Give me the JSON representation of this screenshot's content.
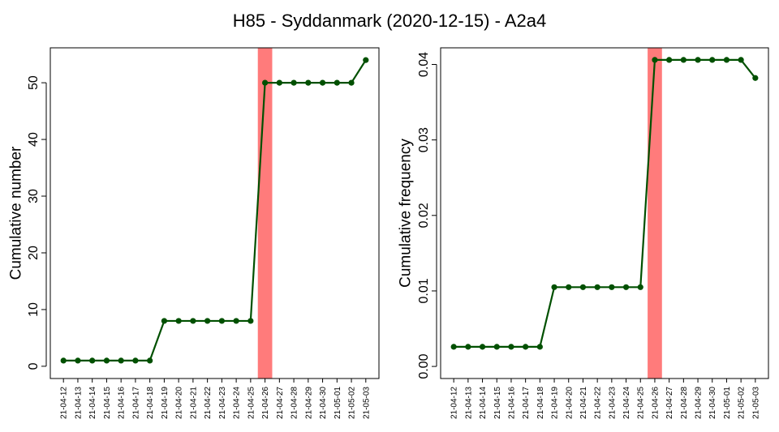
{
  "title": "H85 - Syddanmark (2020-12-15) - A2a4",
  "colors": {
    "line": "#005000",
    "highlight": "#ff7b7b",
    "axis": "#000000"
  },
  "chart_data": [
    {
      "type": "line",
      "ylabel": "Cumulative number",
      "categories": [
        "21-04-12",
        "21-04-13",
        "21-04-14",
        "21-04-15",
        "21-04-16",
        "21-04-17",
        "21-04-18",
        "21-04-19",
        "21-04-20",
        "21-04-21",
        "21-04-22",
        "21-04-23",
        "21-04-24",
        "21-04-25",
        "21-04-26",
        "21-04-27",
        "21-04-28",
        "21-04-29",
        "21-04-30",
        "21-05-01",
        "21-05-02",
        "21-05-03"
      ],
      "values": [
        1,
        1,
        1,
        1,
        1,
        1,
        1,
        8,
        8,
        8,
        8,
        8,
        8,
        8,
        50,
        50,
        50,
        50,
        50,
        50,
        50,
        54
      ],
      "yticks": [
        0,
        10,
        20,
        30,
        40,
        50
      ],
      "ytick_labels": [
        "0",
        "10",
        "20",
        "30",
        "40",
        "50"
      ],
      "ylim": [
        -2.16,
        56.16
      ],
      "highlight_category": "21-04-26",
      "grid": false
    },
    {
      "type": "line",
      "ylabel": "Cumulative frequency",
      "categories": [
        "21-04-12",
        "21-04-13",
        "21-04-14",
        "21-04-15",
        "21-04-16",
        "21-04-17",
        "21-04-18",
        "21-04-19",
        "21-04-20",
        "21-04-21",
        "21-04-22",
        "21-04-23",
        "21-04-24",
        "21-04-25",
        "21-04-26",
        "21-04-27",
        "21-04-28",
        "21-04-29",
        "21-04-30",
        "21-05-01",
        "21-05-02",
        "21-05-03"
      ],
      "values": [
        0.0026,
        0.0026,
        0.0026,
        0.0026,
        0.0026,
        0.0026,
        0.0026,
        0.0105,
        0.0105,
        0.0105,
        0.0105,
        0.0105,
        0.0105,
        0.0105,
        0.0406,
        0.0406,
        0.0406,
        0.0406,
        0.0406,
        0.0406,
        0.0406,
        0.0382
      ],
      "yticks": [
        0,
        0.01,
        0.02,
        0.03,
        0.04
      ],
      "ytick_labels": [
        "0.00",
        "0.01",
        "0.02",
        "0.03",
        "0.04"
      ],
      "ylim": [
        -0.0016,
        0.0422
      ],
      "highlight_category": "21-04-26",
      "grid": false
    }
  ]
}
